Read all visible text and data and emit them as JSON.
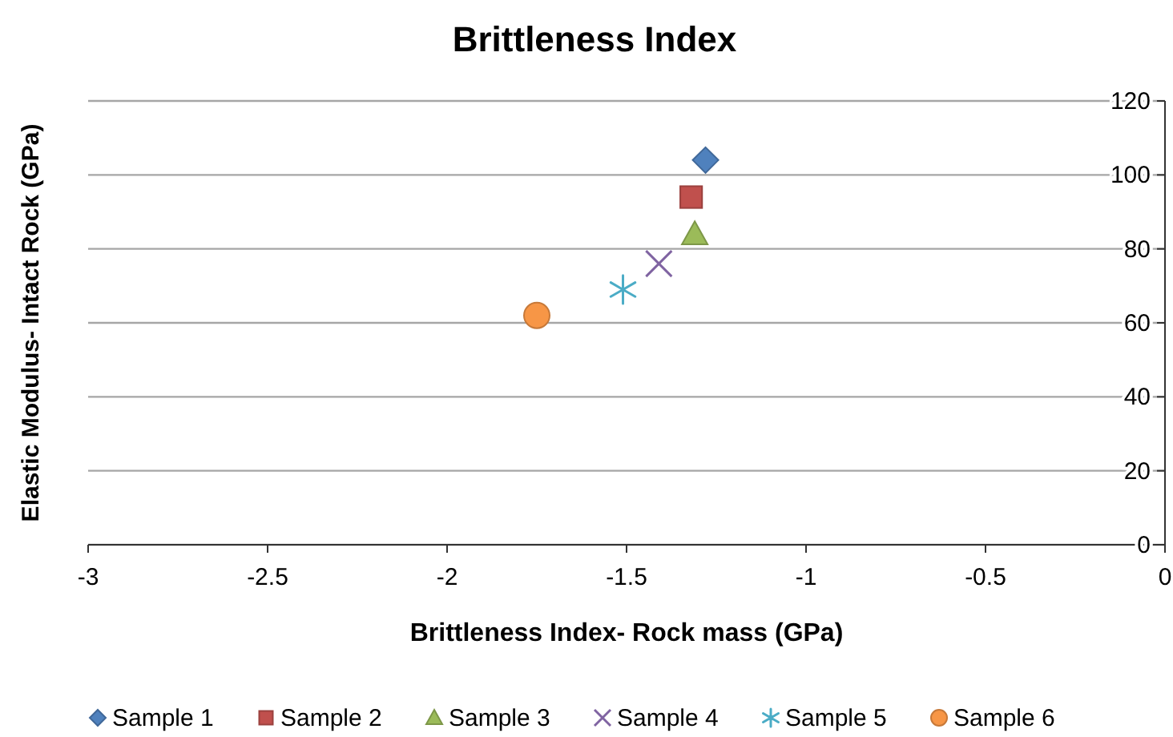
{
  "chart_data": {
    "type": "scatter",
    "title": "Brittleness Index",
    "xlabel": "Brittleness Index- Rock mass (GPa)",
    "ylabel": "Elastic Modulus- Intact Rock (GPa)",
    "xlim": [
      -3,
      0
    ],
    "xticks": [
      -3,
      -2.5,
      -2,
      -1.5,
      -1,
      -0.5,
      0
    ],
    "ylim": [
      0,
      120
    ],
    "yticks": [
      0,
      20,
      40,
      60,
      80,
      100,
      120
    ],
    "grid": "y",
    "legend": "bottom",
    "series": [
      {
        "name": "Sample 1",
        "color": "#4f81bd",
        "marker": "diamond",
        "x": [
          -1.28
        ],
        "values": [
          104
        ]
      },
      {
        "name": "Sample 2",
        "color": "#c0504d",
        "marker": "square",
        "x": [
          -1.32
        ],
        "values": [
          94
        ]
      },
      {
        "name": "Sample 3",
        "color": "#9bbb59",
        "marker": "triangle",
        "x": [
          -1.31
        ],
        "values": [
          84
        ]
      },
      {
        "name": "Sample 4",
        "color": "#8064a2",
        "marker": "cross",
        "x": [
          -1.41
        ],
        "values": [
          76
        ]
      },
      {
        "name": "Sample 5",
        "color": "#4bacc6",
        "x": [
          -1.51
        ],
        "values": [
          69
        ]
      },
      {
        "name": "Sample 6",
        "color": "#f79646",
        "marker": "circle",
        "x": [
          -1.75
        ],
        "values": [
          62
        ]
      }
    ]
  }
}
